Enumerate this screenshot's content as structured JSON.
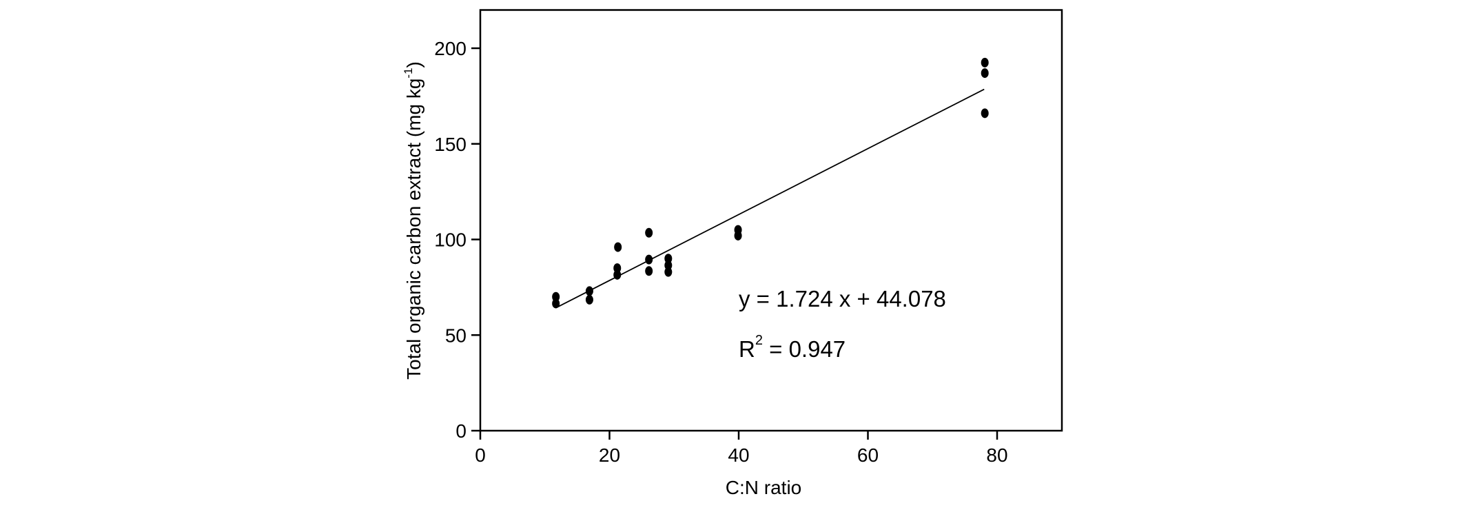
{
  "chart_data": {
    "type": "scatter",
    "title": "",
    "xlabel": "C:N ratio",
    "ylabel": "Total organic carbon extract (mg kg⁻¹)",
    "ylabel_parts": {
      "base": "Total organic carbon extract (mg kg",
      "superscript": "-1",
      "close": ")"
    },
    "xlim": [
      0,
      90
    ],
    "ylim": [
      0,
      220
    ],
    "xticks": [
      "0",
      "20",
      "40",
      "60",
      "80"
    ],
    "yticks": [
      "0",
      "50",
      "100",
      "150",
      "200"
    ],
    "grid": false,
    "legend": null,
    "marker": {
      "shape": "ellipse",
      "color": "#000000"
    },
    "points": [
      {
        "x": 11.7,
        "y": 66.5
      },
      {
        "x": 11.7,
        "y": 70
      },
      {
        "x": 16.9,
        "y": 68.5
      },
      {
        "x": 16.9,
        "y": 73
      },
      {
        "x": 21.2,
        "y": 81.5
      },
      {
        "x": 21.2,
        "y": 85
      },
      {
        "x": 21.3,
        "y": 96
      },
      {
        "x": 26.1,
        "y": 83.5
      },
      {
        "x": 26.1,
        "y": 89.5
      },
      {
        "x": 26.1,
        "y": 103.5
      },
      {
        "x": 29.1,
        "y": 83
      },
      {
        "x": 29.1,
        "y": 86.5
      },
      {
        "x": 29.1,
        "y": 90
      },
      {
        "x": 39.9,
        "y": 102
      },
      {
        "x": 39.9,
        "y": 105
      },
      {
        "x": 78.1,
        "y": 166
      },
      {
        "x": 78.1,
        "y": 187
      },
      {
        "x": 78.1,
        "y": 192.5
      }
    ],
    "regression_line": {
      "slope": 1.724,
      "intercept": 44.078,
      "x_start": 12,
      "x_end": 78
    },
    "annotations": {
      "equation": "y = 1.724 x + 44.078",
      "r2_base": "R",
      "r2_superscript": "2",
      "r2_rest": " = 0.947"
    },
    "colors": {
      "marker": "#000000",
      "line": "#000000",
      "text": "#000000",
      "background": "#ffffff"
    }
  }
}
